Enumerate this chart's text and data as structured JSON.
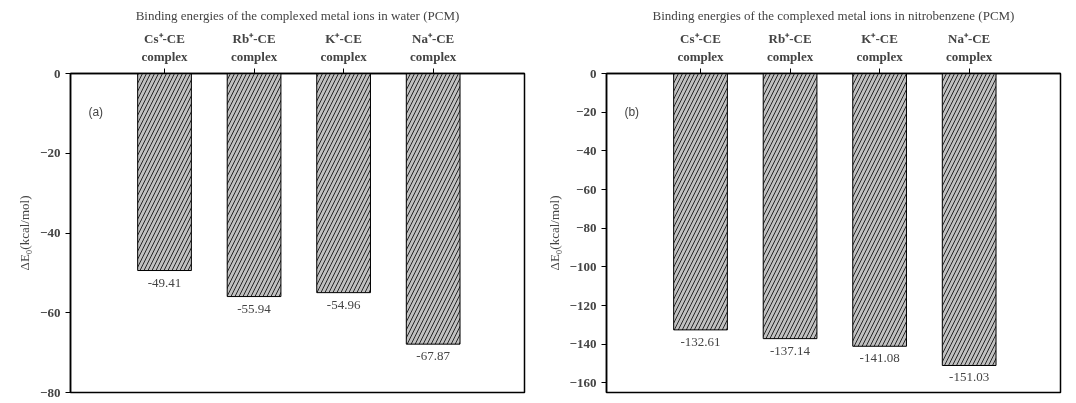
{
  "chart_data": [
    {
      "type": "bar",
      "title": "Binding energies of the complexed metal ions in water (PCM)",
      "ylabel": "ΔE₀(kcal/mol)",
      "categories": [
        "Cs⁺-CE complex",
        "Rb⁺-CE complex",
        "K⁺-CE complex",
        "Na⁺-CE complex"
      ],
      "values": [
        -49.41,
        -55.94,
        -54.96,
        -67.87
      ],
      "color": "#c0c0c0",
      "ylim": [
        -80,
        0
      ],
      "yticks": [
        0,
        -20,
        -40,
        -60,
        -80
      ],
      "data_labels": true,
      "annotations": [
        "(a)"
      ]
    },
    {
      "type": "bar",
      "title": "Binding energies of the complexed metal ions in nitrobenzene (PCM)",
      "ylabel": "ΔE₀(kcal/mol)",
      "categories": [
        "Cs⁺-CE complex",
        "Rb⁺-CE complex",
        "K⁺-CE complex",
        "Na⁺-CE complex"
      ],
      "values": [
        -132.61,
        -137.14,
        -141.08,
        -151.03
      ],
      "color": "#c0c0c0",
      "ylim": [
        -165,
        0
      ],
      "yticks": [
        0,
        -20,
        -40,
        -60,
        -80,
        -100,
        -120,
        -140,
        -160
      ],
      "data_labels": true,
      "annotations": [
        "(b)"
      ]
    }
  ]
}
